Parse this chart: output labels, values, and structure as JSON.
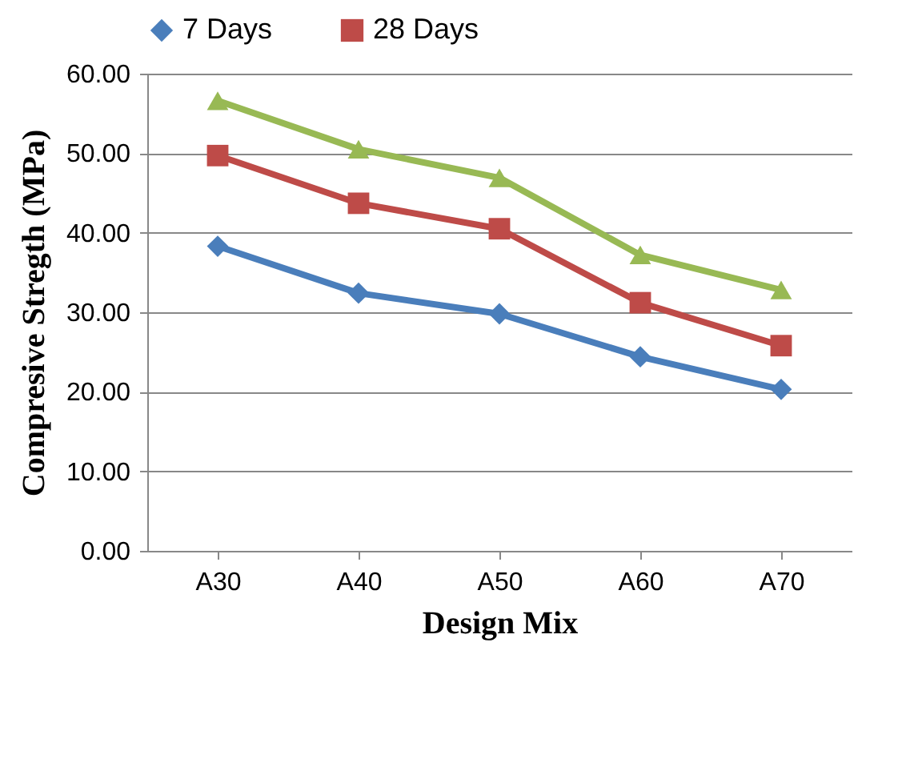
{
  "chart_data": {
    "type": "line",
    "xlabel": "Design Mix",
    "ylabel": "Compresive Stregth  (MPa)",
    "categories": [
      "A30",
      "A40",
      "A50",
      "A60",
      "A70"
    ],
    "series": [
      {
        "name": "7 Days",
        "color": "#4a7ebb",
        "marker": "diamond",
        "values": [
          38.3,
          32.4,
          29.8,
          24.4,
          20.3
        ]
      },
      {
        "name": "28 Days",
        "color": "#be4b48",
        "marker": "square",
        "values": [
          49.7,
          43.7,
          40.5,
          31.2,
          25.8
        ]
      },
      {
        "color": "#98b954",
        "marker": "triangle",
        "values": [
          56.6,
          50.5,
          46.9,
          37.2,
          32.8
        ]
      }
    ],
    "ylim": [
      0,
      60
    ],
    "yticks": [
      {
        "value": 0,
        "label": "0.00"
      },
      {
        "value": 10,
        "label": "10.00"
      },
      {
        "value": 20,
        "label": "20.00"
      },
      {
        "value": 30,
        "label": "30.00"
      },
      {
        "value": 40,
        "label": "40.00"
      },
      {
        "value": 50,
        "label": "50.00"
      },
      {
        "value": 60,
        "label": "60.00"
      }
    ],
    "grid": "y",
    "legend": "top",
    "line_style": "solid"
  }
}
